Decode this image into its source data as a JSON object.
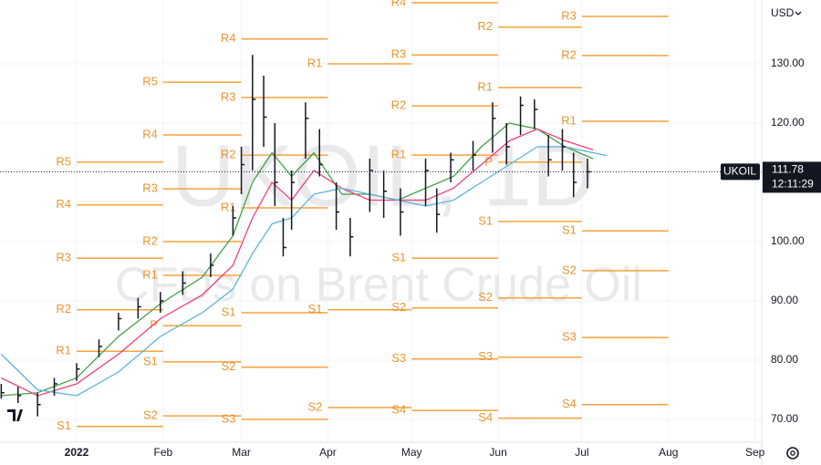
{
  "chart_data": {
    "type": "ohlc",
    "title": "UKOIL, 1D",
    "subtitle": "CFDs on Brent Crude Oil",
    "symbol": "UKOIL",
    "currency": "USD",
    "last_price": 111.78,
    "countdown": "12:11:29",
    "color": "#131722",
    "grid": true,
    "xlim": [
      -27.45,
      245.4
    ],
    "ylim": [
      66.15,
      140.77
    ],
    "xticks": [
      {
        "value": 0,
        "label": "2022"
      },
      {
        "value": 31,
        "label": "Feb"
      },
      {
        "value": 59,
        "label": "Mar"
      },
      {
        "value": 90,
        "label": "Apr"
      },
      {
        "value": 120,
        "label": "May"
      },
      {
        "value": 151,
        "label": "Jun"
      },
      {
        "value": 181,
        "label": "Jul"
      },
      {
        "value": 212,
        "label": "Aug"
      },
      {
        "value": 243,
        "label": "Sep"
      }
    ],
    "yticks": [
      {
        "value": 70,
        "label": "70.00"
      },
      {
        "value": 80,
        "label": "80.00"
      },
      {
        "value": 90,
        "label": "90.00"
      },
      {
        "value": 100,
        "label": "100.00"
      },
      {
        "value": 120,
        "label": "120.00"
      },
      {
        "value": 130,
        "label": "130.00"
      }
    ],
    "x": [
      -27,
      -21,
      -14,
      -8,
      0,
      8,
      15,
      22,
      30,
      38,
      48,
      56,
      59,
      63,
      67,
      71,
      74,
      77,
      82,
      87,
      93,
      98,
      105,
      110,
      116,
      125,
      129,
      134,
      142,
      149,
      154,
      159,
      164,
      169,
      174,
      178,
      183
    ],
    "high": [
      76,
      75.5,
      74.5,
      77,
      79.5,
      83.5,
      88,
      90.5,
      91.5,
      95,
      98,
      106,
      116,
      131.5,
      128,
      120,
      104,
      112,
      123.5,
      119,
      110,
      104,
      114,
      112,
      109,
      114,
      109,
      115,
      117,
      123.5,
      120,
      124.5,
      124,
      118,
      119,
      115,
      114
    ],
    "low": [
      73.5,
      72.5,
      70.5,
      74,
      76.5,
      80.5,
      85,
      87,
      88,
      91,
      94,
      101,
      108,
      112,
      116,
      106,
      97.5,
      102,
      114,
      111,
      102,
      97.5,
      105,
      104,
      101,
      106,
      101.5,
      110,
      112,
      115,
      113,
      118,
      119,
      111,
      112,
      107.5,
      109
    ],
    "close": [
      74.5,
      74,
      72.5,
      76,
      78.5,
      82.3,
      87,
      89,
      90,
      93,
      96,
      104,
      113,
      124,
      121,
      110,
      99,
      110,
      120.8,
      113,
      105,
      100.8,
      112,
      108.5,
      105,
      112,
      104.6,
      113.8,
      114.6,
      120.8,
      116,
      123,
      122.3,
      113.8,
      116,
      110,
      111.78
    ],
    "moving_averages": [
      {
        "color": "#43a047",
        "x": [
          -27,
          -14,
          0,
          15,
          30,
          45,
          56,
          63,
          70,
          77,
          85,
          95,
          105,
          115,
          125,
          135,
          145,
          155,
          165,
          175,
          185
        ],
        "values": [
          74,
          74.5,
          77,
          84,
          89.5,
          94,
          101,
          110,
          115,
          111,
          115,
          108,
          108,
          107,
          109,
          111,
          116,
          120,
          119,
          116,
          114
        ]
      },
      {
        "color": "#ec407a",
        "x": [
          -27,
          -14,
          0,
          15,
          30,
          45,
          56,
          63,
          70,
          77,
          85,
          95,
          105,
          115,
          125,
          135,
          145,
          155,
          165,
          175,
          185
        ],
        "values": [
          77,
          74,
          76,
          81,
          87,
          91,
          96,
          104,
          110,
          107,
          112,
          109,
          107,
          107,
          107,
          109,
          113,
          117,
          119,
          117,
          115.5
        ]
      },
      {
        "color": "#5ab4dc",
        "x": [
          -27,
          -14,
          0,
          15,
          30,
          45,
          56,
          63,
          70,
          77,
          85,
          95,
          105,
          115,
          125,
          135,
          145,
          155,
          165,
          175,
          190
        ],
        "values": [
          81,
          75,
          74,
          78,
          84,
          88,
          92,
          98,
          103,
          104,
          108,
          109,
          108,
          107,
          106,
          107,
          110,
          113,
          116,
          116,
          114.5
        ]
      }
    ],
    "pivots": [
      {
        "start": 0,
        "end": 31,
        "levels": [
          {
            "label": "R5",
            "value": 113.4
          },
          {
            "label": "R4",
            "value": 106.2
          },
          {
            "label": "R3",
            "value": 97.2
          },
          {
            "label": "R2",
            "value": 88.5
          },
          {
            "label": "R1",
            "value": 81.5
          },
          {
            "label": "S1",
            "value": 68.8
          }
        ]
      },
      {
        "start": 31,
        "end": 59,
        "levels": [
          {
            "label": "R5",
            "value": 126.9
          },
          {
            "label": "R4",
            "value": 118
          },
          {
            "label": "R3",
            "value": 108.9
          },
          {
            "label": "R2",
            "value": 100
          },
          {
            "label": "R1",
            "value": 94.3
          },
          {
            "label": "P",
            "value": 85.8
          },
          {
            "label": "S1",
            "value": 79.7
          },
          {
            "label": "S2",
            "value": 70.6
          }
        ]
      },
      {
        "start": 59,
        "end": 90,
        "levels": [
          {
            "label": "R4",
            "value": 134.2
          },
          {
            "label": "R3",
            "value": 124.3
          },
          {
            "label": "R2",
            "value": 114.6
          },
          {
            "label": "R1",
            "value": 105.7
          },
          {
            "label": "S1",
            "value": 88
          },
          {
            "label": "S2",
            "value": 78.8
          },
          {
            "label": "S3",
            "value": 70
          }
        ]
      },
      {
        "start": 90,
        "end": 120,
        "levels": [
          {
            "label": "R1",
            "value": 130
          },
          {
            "label": "S1",
            "value": 88.5
          },
          {
            "label": "S2",
            "value": 72
          }
        ]
      },
      {
        "start": 120,
        "end": 151,
        "levels": [
          {
            "label": "R4",
            "value": 140.3
          },
          {
            "label": "R3",
            "value": 131.5
          },
          {
            "label": "R2",
            "value": 122.9
          },
          {
            "label": "R1",
            "value": 114.6
          },
          {
            "label": "S1",
            "value": 97.2
          },
          {
            "label": "S2",
            "value": 88.8
          },
          {
            "label": "S3",
            "value": 80.2
          },
          {
            "label": "S4",
            "value": 71.5
          }
        ]
      },
      {
        "start": 151,
        "end": 181,
        "levels": [
          {
            "label": "R2",
            "value": 136.2
          },
          {
            "label": "R1",
            "value": 126
          },
          {
            "label": "P",
            "value": 113.4
          },
          {
            "label": "S1",
            "value": 103.4
          },
          {
            "label": "S2",
            "value": 90.5
          },
          {
            "label": "S3",
            "value": 80.5
          },
          {
            "label": "S4",
            "value": 70.2
          }
        ]
      },
      {
        "start": 181,
        "end": 212,
        "levels": [
          {
            "label": "R3",
            "value": 138
          },
          {
            "label": "R2",
            "value": 131.4
          },
          {
            "label": "R1",
            "value": 120.3
          },
          {
            "label": "S1",
            "value": 101.8
          },
          {
            "label": "S2",
            "value": 95.1
          },
          {
            "label": "S3",
            "value": 83.8
          },
          {
            "label": "S4",
            "value": 72.5
          }
        ]
      }
    ]
  }
}
